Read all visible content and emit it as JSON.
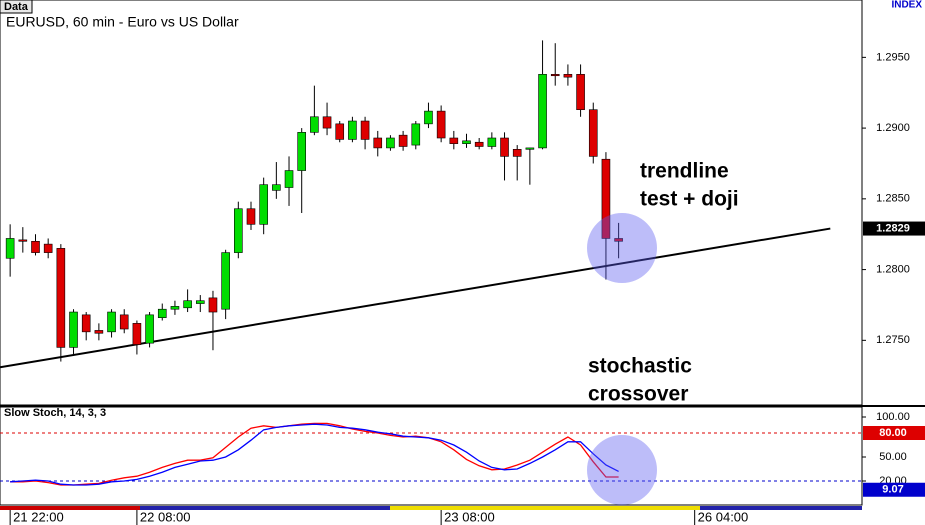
{
  "chart_data": [
    {
      "type": "candlestick",
      "title": "EURUSD, 60 min - Euro vs US Dollar",
      "tab": "Data",
      "label": "INDEX",
      "up_color": "#00dd00",
      "down_color": "#dd0000",
      "open": [
        1.2808,
        1.2821,
        1.282,
        1.2818,
        1.2815,
        1.2745,
        1.2768,
        1.2757,
        1.2756,
        1.2768,
        1.2762,
        1.2748,
        1.2766,
        1.2772,
        1.2773,
        1.2776,
        1.278,
        1.2772,
        1.2812,
        1.2843,
        1.2832,
        1.2856,
        1.2858,
        1.287,
        1.2897,
        1.2908,
        1.2903,
        1.2892,
        1.2905,
        1.2893,
        1.2886,
        1.2895,
        1.2888,
        1.2903,
        1.2912,
        1.2893,
        1.2889,
        1.289,
        1.2887,
        1.2893,
        1.2885,
        1.2885,
        1.2886,
        1.2938,
        1.2938,
        1.2938,
        1.2913,
        1.2878,
        1.2822
      ],
      "high": [
        1.2832,
        1.283,
        1.2825,
        1.2822,
        1.2818,
        1.2772,
        1.277,
        1.2762,
        1.2772,
        1.2772,
        1.2764,
        1.277,
        1.2776,
        1.2778,
        1.2786,
        1.2782,
        1.2785,
        1.2814,
        1.2848,
        1.2848,
        1.2865,
        1.2876,
        1.288,
        1.29,
        1.293,
        1.2918,
        1.2905,
        1.2908,
        1.2908,
        1.2898,
        1.2895,
        1.2898,
        1.2905,
        1.2918,
        1.2916,
        1.2898,
        1.2896,
        1.2893,
        1.2897,
        1.2897,
        1.2888,
        1.2886,
        1.2962,
        1.296,
        1.2945,
        1.2945,
        1.2918,
        1.2883,
        1.2833
      ],
      "low": [
        1.2795,
        1.2812,
        1.281,
        1.2808,
        1.2735,
        1.274,
        1.275,
        1.275,
        1.2752,
        1.2755,
        1.274,
        1.2745,
        1.2764,
        1.2768,
        1.277,
        1.277,
        1.2743,
        1.2765,
        1.2808,
        1.2828,
        1.2825,
        1.285,
        1.2845,
        1.284,
        1.2895,
        1.2895,
        1.289,
        1.289,
        1.2885,
        1.288,
        1.2884,
        1.2884,
        1.2885,
        1.29,
        1.289,
        1.2885,
        1.2886,
        1.2885,
        1.2885,
        1.2863,
        1.2863,
        1.286,
        1.2885,
        1.293,
        1.293,
        1.2908,
        1.2875,
        1.2793,
        1.2808
      ],
      "close": [
        1.2822,
        1.282,
        1.2812,
        1.2812,
        1.2745,
        1.277,
        1.2756,
        1.2755,
        1.277,
        1.2758,
        1.2747,
        1.2768,
        1.2772,
        1.2774,
        1.2778,
        1.2778,
        1.277,
        1.2812,
        1.2843,
        1.2832,
        1.286,
        1.286,
        1.287,
        1.2897,
        1.2908,
        1.29,
        1.2892,
        1.2905,
        1.2892,
        1.2886,
        1.2893,
        1.2887,
        1.2903,
        1.2912,
        1.2893,
        1.2889,
        1.2891,
        1.2887,
        1.2893,
        1.288,
        1.288,
        1.2886,
        1.2938,
        1.2937,
        1.2936,
        1.2913,
        1.288,
        1.2822,
        1.282
      ],
      "trendline": {
        "x": [
          -0.8,
          64.7
        ],
        "y": [
          1.2731,
          1.2829
        ],
        "color": "#000000"
      },
      "xlim": [
        -0.8,
        67.2
      ],
      "ylim": [
        1.2705,
        1.2987
      ],
      "yticks": [
        {
          "value": 1.275,
          "label": "1.2750"
        },
        {
          "value": 1.28,
          "label": "1.2800"
        },
        {
          "value": 1.285,
          "label": "1.2850"
        },
        {
          "value": 1.29,
          "label": "1.2900"
        },
        {
          "value": 1.295,
          "label": "1.2950"
        }
      ],
      "last_price": {
        "value": 1.2829,
        "label": "1.2829"
      },
      "annotations": [
        {
          "lines": [
            "trendline",
            "test + doji"
          ]
        },
        {
          "lines": [
            "stochastic",
            "crossover"
          ]
        }
      ]
    },
    {
      "type": "line",
      "title": "Slow Stoch, 14, 3, 3",
      "series": [
        {
          "color": "#ff0000",
          "values": [
            19,
            19,
            20,
            18,
            15,
            15,
            16,
            17,
            21,
            24,
            26,
            31,
            37,
            42,
            46,
            46,
            49,
            62,
            75,
            86,
            89,
            87,
            89,
            91,
            92,
            92,
            89,
            85,
            82,
            80,
            77,
            75,
            76,
            74,
            69,
            59,
            47,
            39,
            34,
            35,
            40,
            46,
            56,
            66,
            75,
            65,
            44,
            25,
            25
          ]
        },
        {
          "color": "#0000ff",
          "values": [
            19,
            20,
            21,
            20,
            16,
            15,
            15,
            16,
            19,
            20,
            22,
            26,
            31,
            37,
            41,
            45,
            46,
            50,
            59,
            71,
            84,
            87,
            89,
            90,
            91,
            90,
            87,
            86,
            84,
            81,
            79,
            76,
            75,
            74,
            71,
            65,
            56,
            45,
            37,
            34,
            35,
            42,
            50,
            59,
            69,
            69,
            54,
            40,
            32
          ]
        }
      ],
      "levels": [
        {
          "value": 80,
          "color": "#dd0000"
        },
        {
          "value": 20,
          "color": "#0000cc"
        }
      ],
      "markers": [
        {
          "value": 80,
          "label": "80.00",
          "color": "#dd0000"
        },
        {
          "value": 9.07,
          "label": "9.07",
          "color": "#0000cc"
        }
      ],
      "xlim": [
        -0.8,
        67.2
      ],
      "ylim": [
        -10,
        112.5
      ],
      "yticks": [
        {
          "value": 100,
          "label": "100.00"
        },
        {
          "value": 50,
          "label": "50.00"
        },
        {
          "value": 20,
          "label": "20.00"
        }
      ],
      "xticks": [
        {
          "value": 0,
          "label": "21 22:00"
        },
        {
          "value": 10,
          "label": "22 08:00"
        },
        {
          "value": 34,
          "label": "23 08:00"
        },
        {
          "value": 54,
          "label": "26 04:00"
        }
      ]
    }
  ]
}
